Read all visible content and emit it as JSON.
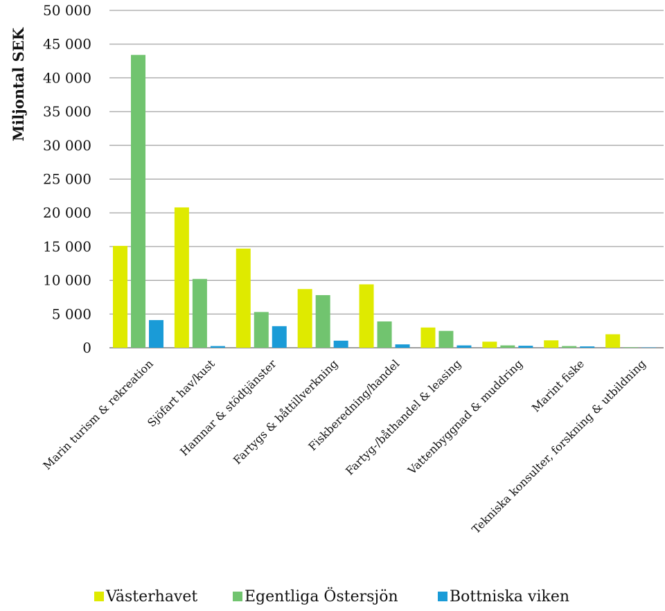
{
  "chart_data": {
    "type": "bar",
    "ylabel": "Miljontal SEK",
    "xlabel": "",
    "ylim": [
      0,
      50000
    ],
    "yticks": [
      0,
      5000,
      10000,
      15000,
      20000,
      25000,
      30000,
      35000,
      40000,
      45000,
      50000
    ],
    "ytick_labels": [
      "0",
      "5 000",
      "10 000",
      "15 000",
      "20 000",
      "25 000",
      "30 000",
      "35 000",
      "40 000",
      "45 000",
      "50 000"
    ],
    "grid": true,
    "legend_position": "bottom",
    "categories": [
      "Marin turism & rekreation",
      "Sjöfart hav/kust",
      "Hamnar & stödtjänster",
      "Fartygs & båttillverkning",
      "Fiskberedning/handel",
      "Fartyg-/båthandel & leasing",
      "Vattenbyggnad & muddring",
      "Marint fiske",
      "Tekniska konsulter, forskning & utbildning"
    ],
    "series": [
      {
        "name": "Västerhavet",
        "color": "#dfea00",
        "values": [
          15100,
          20800,
          14700,
          8700,
          9400,
          3000,
          900,
          1100,
          2000
        ]
      },
      {
        "name": "Egentliga Östersjön",
        "color": "#71c46f",
        "values": [
          43400,
          10200,
          5300,
          7800,
          3900,
          2500,
          350,
          250,
          80
        ]
      },
      {
        "name": "Bottniska viken",
        "color": "#1a9bd7",
        "values": [
          4100,
          250,
          3200,
          1050,
          500,
          350,
          300,
          200,
          50
        ]
      }
    ]
  }
}
